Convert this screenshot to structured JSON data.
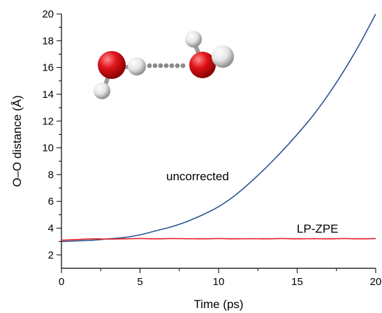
{
  "chart_data": {
    "type": "line",
    "xlabel": "Time (ps)",
    "ylabel": "O–O distance (Å)",
    "xlim": [
      0,
      20
    ],
    "ylim": [
      1,
      20
    ],
    "x_ticks": [
      0,
      5,
      10,
      15,
      20
    ],
    "y_ticks": [
      2,
      4,
      6,
      8,
      10,
      12,
      14,
      16,
      18,
      20
    ],
    "grid": false,
    "series": [
      {
        "name": "uncorrected",
        "color": "#2b5592",
        "x": [
          0,
          1,
          2,
          3,
          4,
          5,
          6,
          7,
          8,
          9,
          10,
          11,
          12,
          13,
          14,
          15,
          16,
          17,
          18,
          19,
          20
        ],
        "y": [
          3.0,
          3.05,
          3.1,
          3.2,
          3.3,
          3.5,
          3.8,
          4.1,
          4.5,
          5.0,
          5.6,
          6.4,
          7.4,
          8.5,
          9.7,
          11.0,
          12.4,
          14.0,
          15.8,
          17.8,
          20.0
        ]
      },
      {
        "name": "LP-ZPE",
        "color": "#e8202a",
        "x": [
          0,
          1,
          2,
          3,
          4,
          5,
          6,
          7,
          8,
          9,
          10,
          11,
          12,
          13,
          14,
          15,
          16,
          17,
          18,
          19,
          20
        ],
        "y": [
          3.1,
          3.15,
          3.2,
          3.18,
          3.2,
          3.22,
          3.2,
          3.22,
          3.21,
          3.2,
          3.22,
          3.2,
          3.21,
          3.2,
          3.22,
          3.2,
          3.21,
          3.2,
          3.22,
          3.2,
          3.22
        ]
      }
    ],
    "inset": {
      "atom_colors": {
        "oxygen": "#e0141b",
        "hydrogen": "#e4e4e4",
        "hbond": "#8a8a8a"
      },
      "icon": "water-dimer-molecule"
    }
  }
}
